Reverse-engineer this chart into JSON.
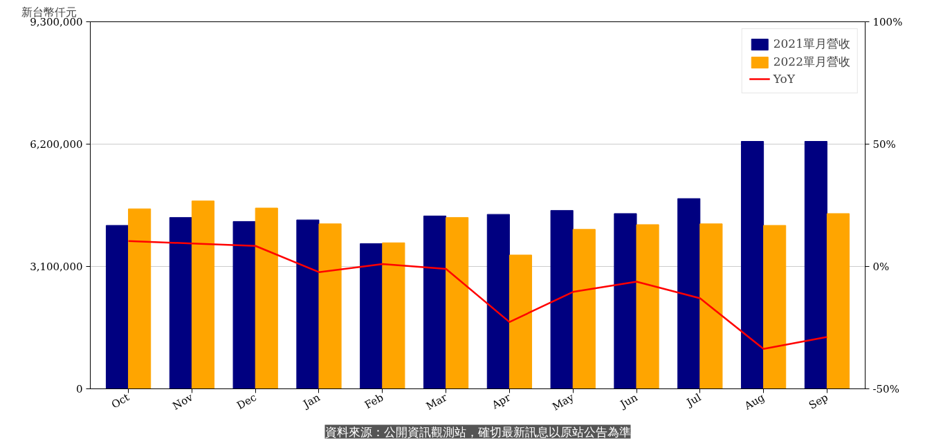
{
  "chart_data": {
    "type": "bar",
    "ylabel": "新台幣仟元",
    "categories": [
      "Oct",
      "Nov",
      "Dec",
      "Jan",
      "Feb",
      "Mar",
      "Apr",
      "May",
      "Jun",
      "Jul",
      "Aug",
      "Sep"
    ],
    "series": [
      {
        "name": "2021單月營收",
        "color": "#000080",
        "values": [
          4140000,
          4340000,
          4240000,
          4280000,
          3680000,
          4380000,
          4420000,
          4520000,
          4440000,
          4820000,
          6270000,
          6270000
        ]
      },
      {
        "name": "2022單月營收",
        "color": "#ffa500",
        "values": [
          4560000,
          4760000,
          4580000,
          4180000,
          3700000,
          4340000,
          3390000,
          4040000,
          4160000,
          4180000,
          4140000,
          4440000
        ]
      },
      {
        "name": "YoY",
        "type": "line",
        "axis": "y2",
        "color": "#ff0000",
        "marker": "none",
        "line_style": "solid",
        "values": [
          10.4,
          9.4,
          8.4,
          -2.3,
          1.0,
          -1.0,
          -22.7,
          -10.4,
          -6.2,
          -13.0,
          -33.7,
          -28.8
        ]
      }
    ],
    "ylim": [
      0,
      9300000
    ],
    "yticks": [
      {
        "value": 0,
        "label": "0"
      },
      {
        "value": 3100000,
        "label": "3,100,000"
      },
      {
        "value": 6200000,
        "label": "6,200,000"
      },
      {
        "value": 9300000,
        "label": "9,300,000"
      }
    ],
    "y2lim": [
      -50,
      100
    ],
    "y2ticks": [
      {
        "value": -50,
        "label": "-50%"
      },
      {
        "value": 0,
        "label": "0%"
      },
      {
        "value": 50,
        "label": "50%"
      },
      {
        "value": 100,
        "label": "100%"
      }
    ],
    "grid": "y",
    "legend": "top right",
    "annotations": [
      "資料來源：公開資訊觀測站，確切最新訊息以原站公告為準"
    ]
  }
}
